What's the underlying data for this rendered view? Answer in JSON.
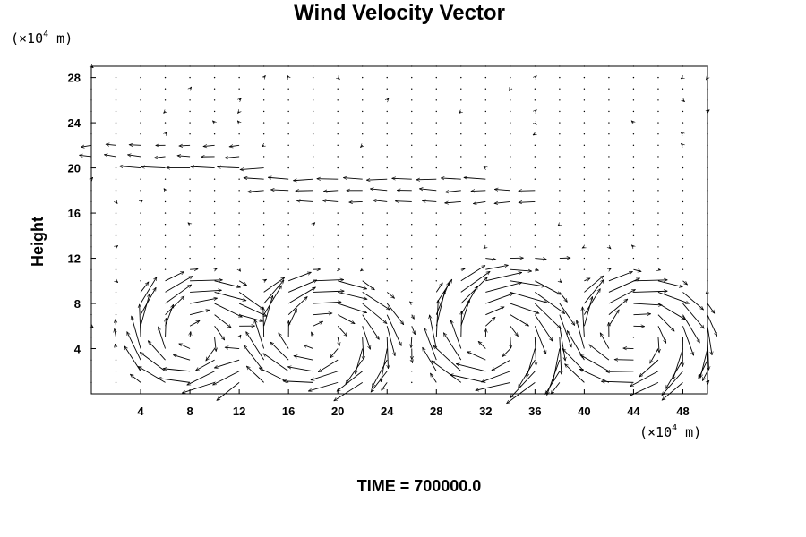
{
  "chart_data": {
    "type": "vector_field",
    "title": "Wind Velocity Vector",
    "ylabel": "Height",
    "xunit": {
      "prefix": "(×10",
      "exp": "4",
      "suffix": " m)"
    },
    "yunit": {
      "prefix": "(×10",
      "exp": "4",
      "suffix": " m)"
    },
    "xlim": [
      0,
      50
    ],
    "ylim": [
      0,
      29
    ],
    "xticks": [
      4,
      8,
      12,
      16,
      20,
      24,
      28,
      32,
      36,
      40,
      44,
      48
    ],
    "yticks": [
      4,
      8,
      12,
      16,
      20,
      24,
      28
    ],
    "grid": {
      "dx": 2,
      "dy": 1
    },
    "cells": [
      {
        "xmin": 1,
        "xmax": 12,
        "cx": 8.5,
        "cy": 5,
        "rx": 5.5,
        "ry": 5,
        "dir": -1,
        "strength": 4
      },
      {
        "xmin": 12,
        "xmax": 26,
        "cx": 18.5,
        "cy": 5,
        "rx": 6.5,
        "ry": 5,
        "dir": -1,
        "strength": 4
      },
      {
        "xmin": 28,
        "xmax": 38,
        "cx": 33,
        "cy": 5,
        "rx": 5.5,
        "ry": 5.5,
        "dir": -1,
        "strength": 4.5
      },
      {
        "xmin": 39,
        "xmax": 50,
        "cx": 44,
        "cy": 5,
        "rx": 6,
        "ry": 5,
        "dir": -1,
        "strength": 4
      }
    ],
    "upper_jets": [
      {
        "y": 22,
        "x": [
          0,
          12
        ],
        "u": -1.2
      },
      {
        "y": 21,
        "x": [
          0,
          12
        ],
        "u": -1.6
      },
      {
        "y": 20,
        "x": [
          4,
          14
        ],
        "u": -2.8
      },
      {
        "y": 19,
        "x": [
          14,
          33
        ],
        "u": -2.6
      },
      {
        "y": 18,
        "x": [
          14,
          36
        ],
        "u": -2.0
      },
      {
        "y": 17,
        "x": [
          18,
          36
        ],
        "u": -1.8
      },
      {
        "y": 12,
        "x": [
          32,
          39
        ],
        "u": 1.4
      }
    ],
    "footer": {
      "label": "TIME = ",
      "value": "700000.0"
    }
  }
}
